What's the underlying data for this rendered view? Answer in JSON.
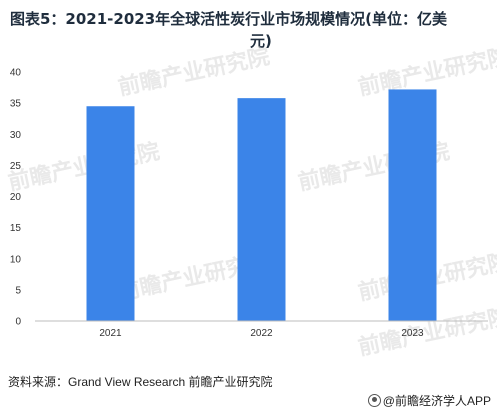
{
  "title": {
    "line1": "图表5：2021-2023年全球活性炭行业市场规模情况(单位：亿美",
    "line2": "元)"
  },
  "source_text": "资料来源：Grand View Research 前瞻产业研究院",
  "credit_text": "@前瞻经济学人APP",
  "watermark_text": "前瞻产业研究院",
  "colors": {
    "bar": "#3b84e8",
    "axis": "#bdbdbd"
  },
  "chart_data": {
    "type": "bar",
    "categories": [
      "2021",
      "2022",
      "2023"
    ],
    "values": [
      34.5,
      35.8,
      37.2
    ],
    "ylim": [
      0,
      40
    ],
    "yticks": [
      0,
      5,
      10,
      15,
      20,
      25,
      30,
      35,
      40
    ],
    "grid": false,
    "title": "图表5：2021-2023年全球活性炭行业市场规模情况(单位：亿美元)",
    "xlabel": "",
    "ylabel": ""
  }
}
